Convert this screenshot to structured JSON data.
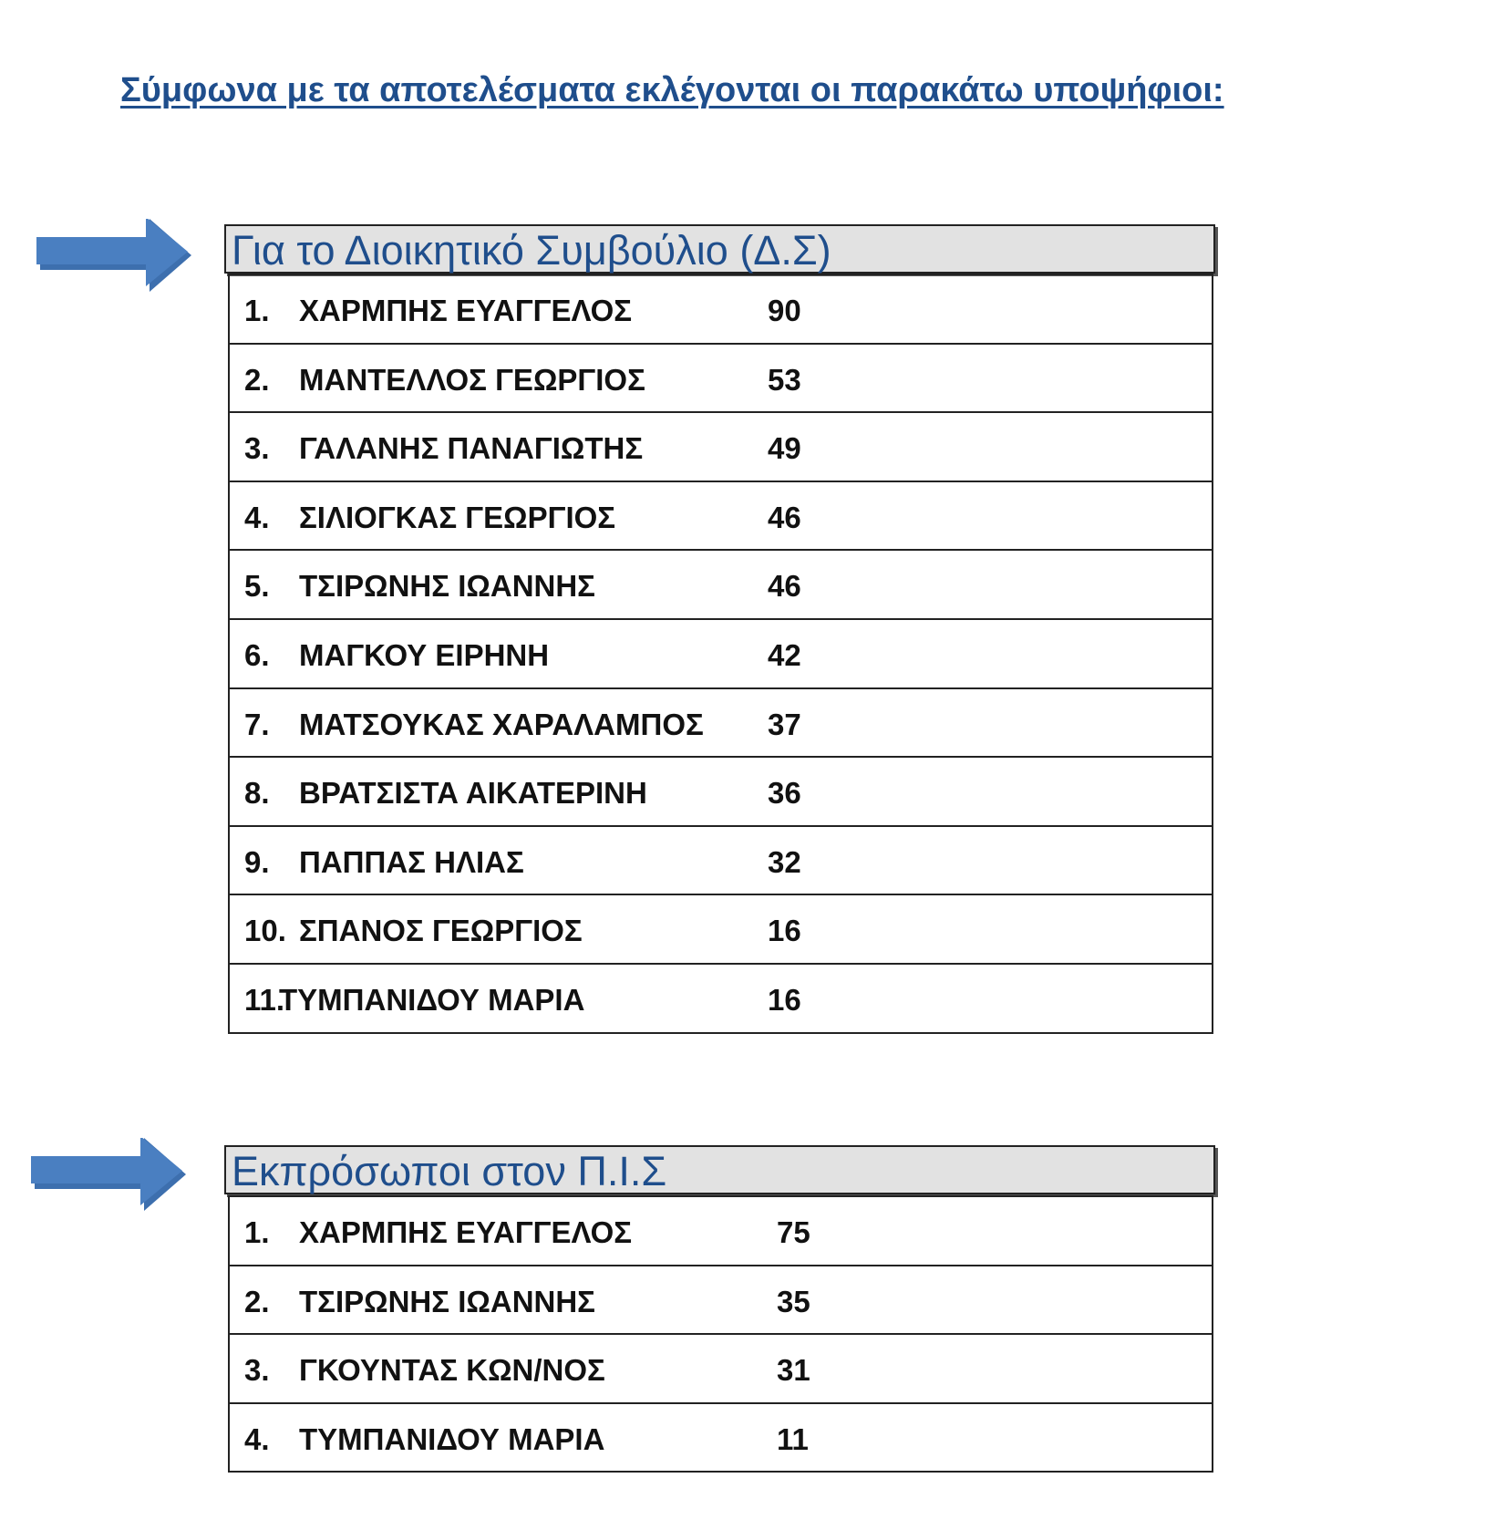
{
  "title": "Σύμφωνα με τα αποτελέσματα εκλέγονται οι παρακάτω υποψήφιοι:",
  "accent_color": "#1f4e8c",
  "arrow_color": "#4a7fc1",
  "sections": [
    {
      "heading": "Για το Διοικητικό Συμβούλιο (Δ.Σ)",
      "icon": "arrow-right-icon",
      "rows": [
        {
          "num": "1.",
          "name": "ΧΑΡΜΠΗΣ ΕΥΑΓΓΕΛΟΣ",
          "votes": "90"
        },
        {
          "num": "2.",
          "name": "ΜΑΝΤΕΛΛΟΣ ΓΕΩΡΓΙΟΣ",
          "votes": "53"
        },
        {
          "num": "3.",
          "name": "ΓΑΛΑΝΗΣ ΠΑΝΑΓΙΩΤΗΣ",
          "votes": "49"
        },
        {
          "num": "4.",
          "name": "ΣΙΛΙΟΓΚΑΣ ΓΕΩΡΓΙΟΣ",
          "votes": "46"
        },
        {
          "num": "5.",
          "name": "ΤΣΙΡΩΝΗΣ ΙΩΑΝΝΗΣ",
          "votes": "46"
        },
        {
          "num": "6.",
          "name": "ΜΑΓΚΟΥ ΕΙΡΗΝΗ",
          "votes": "42"
        },
        {
          "num": "7.",
          "name": "ΜΑΤΣΟΥΚΑΣ ΧΑΡΑΛΑΜΠΟΣ",
          "votes": "37"
        },
        {
          "num": "8.",
          "name": "ΒΡΑΤΣΙΣΤΑ ΑΙΚΑΤΕΡΙΝΗ",
          "votes": "36"
        },
        {
          "num": "9.",
          "name": "ΠΑΠΠΑΣ ΗΛΙΑΣ",
          "votes": "32"
        },
        {
          "num": "10.",
          "name": "ΣΠΑΝΟΣ ΓΕΩΡΓΙΟΣ",
          "votes": "16"
        },
        {
          "num": "11.",
          "name": "ΤΥΜΠΑΝΙΔΟΥ ΜΑΡΙΑ",
          "votes": "16"
        }
      ]
    },
    {
      "heading": "Εκπρόσωποι στον  Π.Ι.Σ",
      "icon": "arrow-right-icon",
      "rows": [
        {
          "num": "1.",
          "name": "ΧΑΡΜΠΗΣ ΕΥΑΓΓΕΛΟΣ",
          "votes": "75"
        },
        {
          "num": "2.",
          "name": "ΤΣΙΡΩΝΗΣ ΙΩΑΝΝΗΣ",
          "votes": "35"
        },
        {
          "num": "3.",
          "name": "ΓΚΟΥΝΤΑΣ ΚΩΝ/ΝΟΣ",
          "votes": "31"
        },
        {
          "num": "4.",
          "name": "ΤΥΜΠΑΝΙΔΟΥ ΜΑΡΙΑ",
          "votes": "11"
        }
      ]
    }
  ]
}
